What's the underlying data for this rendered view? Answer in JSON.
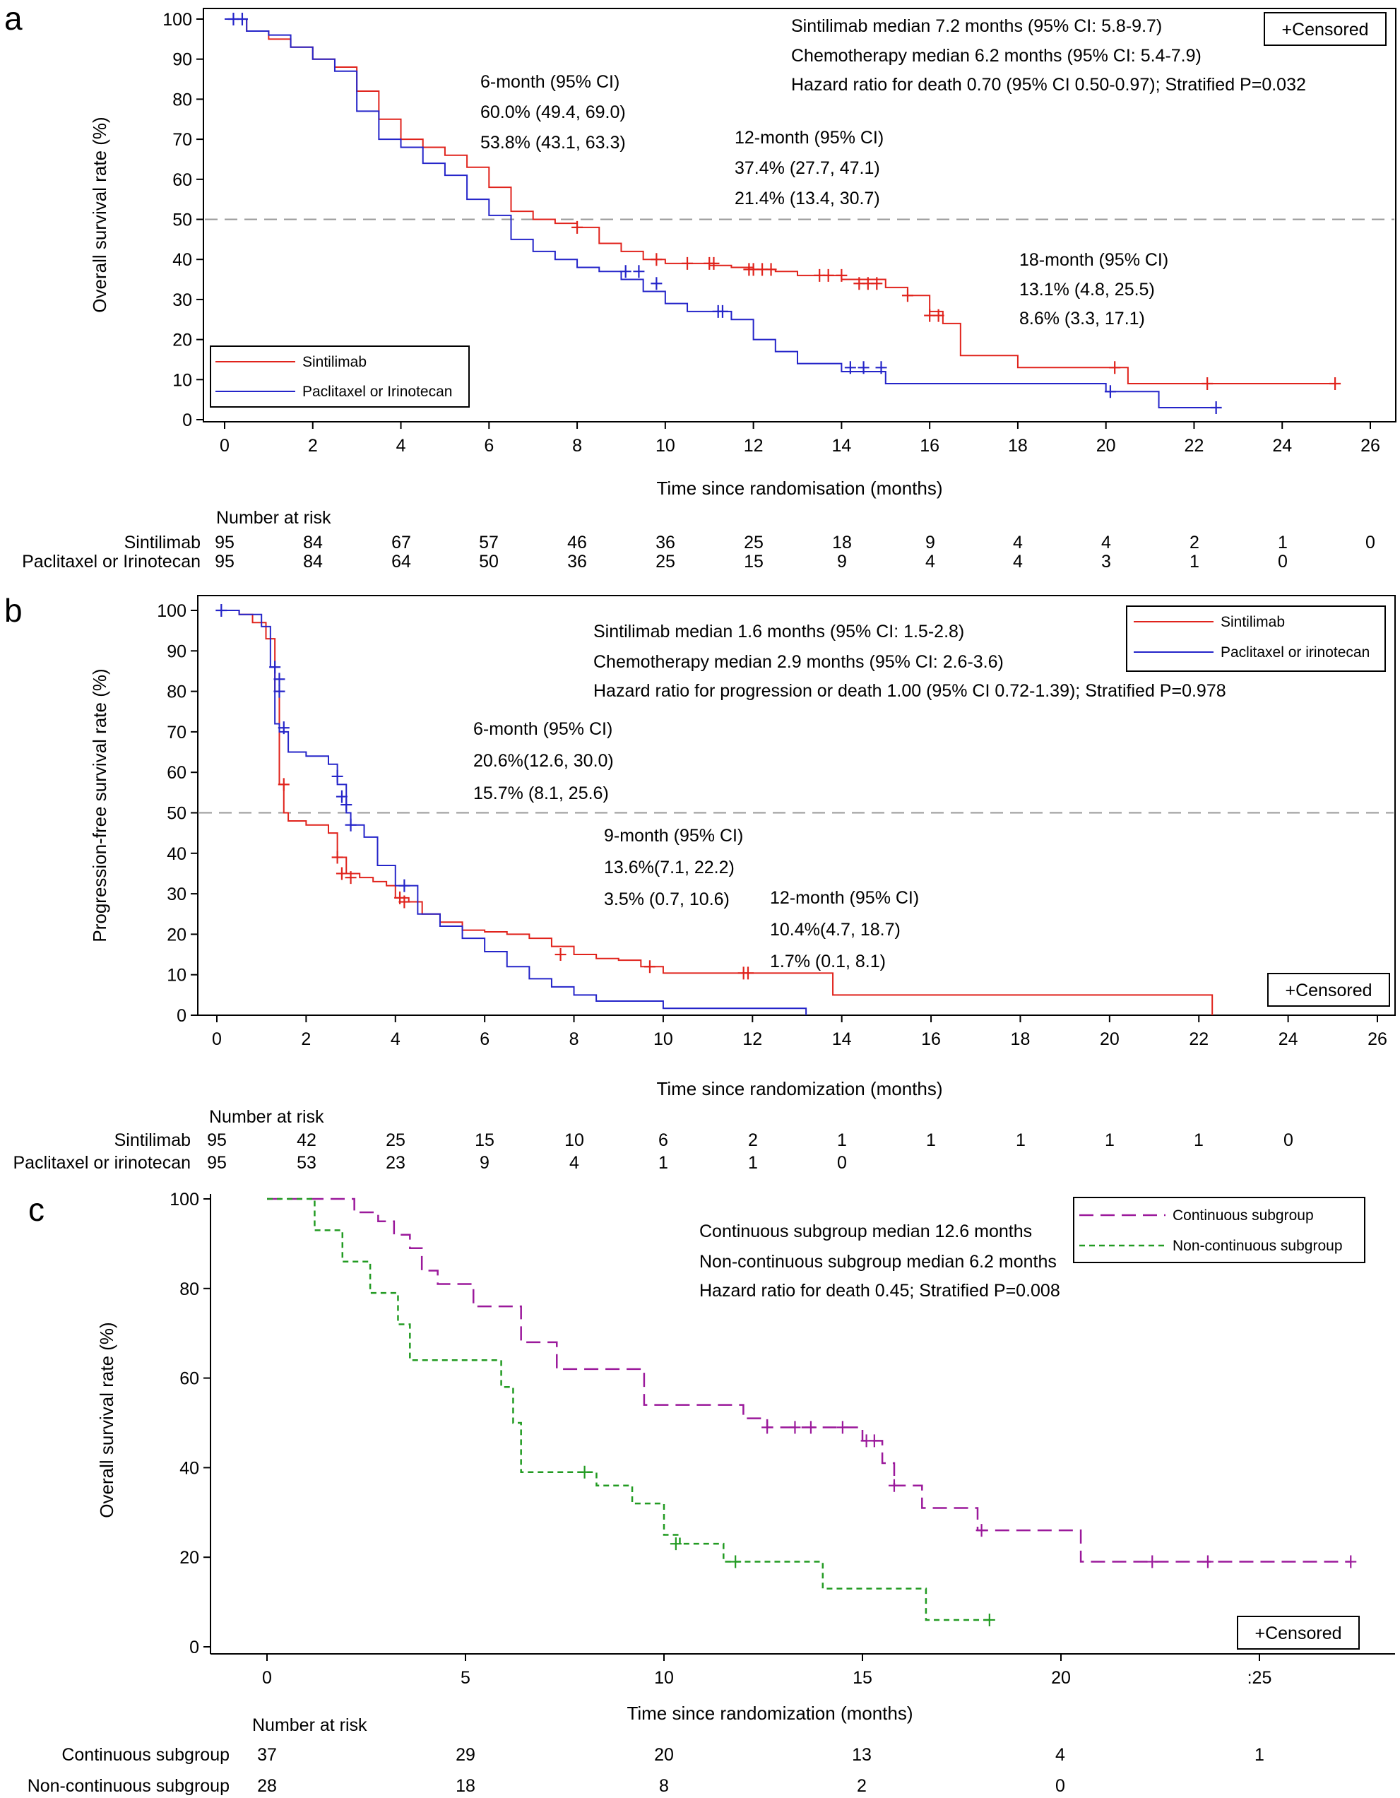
{
  "figure": {
    "panels": [
      "a",
      "b",
      "c"
    ],
    "censored_label": "+Censored",
    "number_at_risk_title": "Number at risk"
  },
  "chart_data": [
    {
      "type": "line",
      "panel": "a",
      "ylabel": "Overall survival rate (%)",
      "xlabel": "Time since randomisation (months)",
      "xlim": [
        0,
        26
      ],
      "ylim": [
        0,
        100
      ],
      "x_ticks": [
        "0",
        "2",
        "4",
        "6",
        "8",
        "10",
        "12",
        "14",
        "16",
        "18",
        "20",
        "22",
        "24",
        "26"
      ],
      "y_ticks": [
        "0",
        "10",
        "20",
        "30",
        "40",
        "50",
        "60",
        "70",
        "80",
        "90",
        "100"
      ],
      "reference_line_y": 50,
      "annotations": [
        "Sintilimab median 7.2 months (95% CI: 5.8-9.7)",
        "Chemotherapy median 6.2 months (95% CI: 5.4-7.9)",
        "Hazard ratio for death 0.70 (95% CI 0.50-0.97); Stratified P=0.032"
      ],
      "landmarks": [
        {
          "lines": [
            "6-month (95% CI)",
            "60.0% (49.4, 69.0)",
            "53.8% (43.1, 63.3)"
          ]
        },
        {
          "lines": [
            "12-month (95% CI)",
            "37.4% (27.7, 47.1)",
            "21.4% (13.4, 30.7)"
          ]
        },
        {
          "lines": [
            "18-month (95% CI)",
            "13.1% (4.8, 25.5)",
            "8.6% (3.3, 17.1)"
          ]
        }
      ],
      "series": [
        {
          "name": "Sintilimab",
          "color": "#e0231c",
          "x": [
            0,
            0.5,
            1,
            1.5,
            2,
            2.5,
            3,
            3.5,
            4,
            4.5,
            5,
            5.5,
            6,
            6.5,
            7,
            7.5,
            8,
            8.5,
            9,
            9.5,
            10,
            11,
            11.5,
            12,
            12.5,
            13,
            14,
            15,
            15.5,
            16,
            16.3,
            16.7,
            18,
            20,
            20.5,
            23,
            25.2
          ],
          "y": [
            100,
            97,
            95,
            93,
            90,
            88,
            82,
            75,
            70,
            68,
            66,
            63,
            58,
            52,
            50,
            49,
            48,
            44,
            42,
            40,
            39,
            38.5,
            38,
            37.5,
            37,
            36,
            35,
            33,
            31,
            27,
            24,
            16,
            13,
            13,
            9,
            9,
            9
          ],
          "censored_x": [
            8,
            9.8,
            10.5,
            11,
            11.1,
            11.9,
            12,
            12.2,
            12.4,
            13.5,
            13.7,
            14,
            14.4,
            14.6,
            14.8,
            15.5,
            16,
            16.2,
            20.2,
            22.3,
            25.2
          ],
          "censored_y": [
            48,
            40,
            39,
            39,
            39,
            37.5,
            37.5,
            37.5,
            37.5,
            36,
            36,
            36,
            34,
            34,
            34,
            31,
            26,
            26,
            13,
            9,
            9
          ]
        },
        {
          "name": "Paclitaxel or Irinotecan",
          "color": "#2525c9",
          "x": [
            0,
            0.5,
            1,
            1.5,
            2,
            2.5,
            3,
            3.5,
            4,
            4.5,
            5,
            5.5,
            6,
            6.5,
            7,
            7.5,
            8,
            8.5,
            9,
            9.5,
            10,
            10.5,
            11,
            11.5,
            12,
            12.5,
            13,
            14,
            14.5,
            15,
            19,
            20,
            21.2,
            22.5
          ],
          "y": [
            100,
            97,
            96,
            93,
            90,
            87,
            77,
            70,
            68,
            64,
            61,
            55,
            51,
            45,
            42,
            40,
            38,
            37,
            35,
            32,
            29,
            27,
            27,
            25,
            20,
            17,
            14,
            12,
            12,
            9,
            9,
            7,
            3,
            3
          ],
          "censored_x": [
            0.2,
            0.4,
            9.1,
            9.4,
            9.8,
            11.2,
            11.3,
            14.2,
            14.5,
            14.9,
            20.1,
            22.5
          ],
          "censored_y": [
            100,
            100,
            37,
            37,
            34,
            27,
            27,
            13,
            13,
            13,
            7,
            3
          ]
        }
      ],
      "number_at_risk": {
        "rows": [
          {
            "label": "Sintilimab",
            "values": [
              "95",
              "84",
              "67",
              "57",
              "46",
              "36",
              "25",
              "18",
              "9",
              "4",
              "4",
              "2",
              "1",
              "0"
            ]
          },
          {
            "label": "Paclitaxel or Irinotecan",
            "values": [
              "95",
              "84",
              "64",
              "50",
              "36",
              "25",
              "15",
              "9",
              "4",
              "4",
              "3",
              "1",
              "0"
            ]
          }
        ]
      }
    },
    {
      "type": "line",
      "panel": "b",
      "ylabel": "Progression-free survival rate (%)",
      "xlabel": "Time since randomization (months)",
      "xlim": [
        0,
        26
      ],
      "ylim": [
        0,
        100
      ],
      "x_ticks": [
        "0",
        "2",
        "4",
        "6",
        "8",
        "10",
        "12",
        "14",
        "16",
        "18",
        "20",
        "22",
        "24",
        "26"
      ],
      "y_ticks": [
        "0",
        "10",
        "20",
        "30",
        "40",
        "50",
        "60",
        "70",
        "80",
        "90",
        "100"
      ],
      "reference_line_y": 50,
      "annotations": [
        "Sintilimab median 1.6 months (95% CI: 1.5-2.8)",
        "Chemotherapy median 2.9 months (95% CI: 2.6-3.6)",
        "Hazard ratio for progression or death 1.00 (95% CI 0.72-1.39); Stratified P=0.978"
      ],
      "landmarks": [
        {
          "lines": [
            "6-month (95% CI)",
            "20.6%(12.6, 30.0)",
            "15.7% (8.1, 25.6)"
          ]
        },
        {
          "lines": [
            "9-month (95% CI)",
            "13.6%(7.1, 22.2)",
            "3.5% (0.7, 10.6)"
          ]
        },
        {
          "lines": [
            "12-month (95% CI)",
            "10.4%(4.7, 18.7)",
            "1.7% (0.1, 8.1)"
          ]
        }
      ],
      "series": [
        {
          "name": "Sintilimab",
          "color": "#e0231c",
          "x": [
            0,
            0.5,
            0.8,
            1.1,
            1.3,
            1.4,
            1.5,
            1.6,
            2,
            2.5,
            2.7,
            2.9,
            3.2,
            3.5,
            3.8,
            4,
            4.3,
            4.6,
            5,
            5.5,
            6,
            6.5,
            7,
            7.5,
            8,
            8.5,
            9,
            9.5,
            10,
            11,
            12,
            13.8,
            22.3
          ],
          "y": [
            100,
            99,
            97,
            93,
            80,
            57,
            50,
            48,
            47,
            45,
            39,
            35,
            34,
            33,
            32,
            29,
            28,
            25,
            23,
            21,
            20.6,
            20,
            19,
            17,
            15,
            14,
            13.6,
            12,
            10.4,
            10.4,
            10.4,
            5,
            0
          ],
          "censored_x": [
            1.5,
            2.7,
            2.8,
            3,
            4.1,
            4.2,
            7.7,
            9.7,
            11.8,
            11.9
          ],
          "censored_y": [
            57,
            39,
            35,
            34,
            29,
            28,
            15,
            12,
            10.4,
            10.4
          ]
        },
        {
          "name": "Paclitaxel or irinotecan",
          "color": "#2525c9",
          "x": [
            0,
            0.5,
            1,
            1.2,
            1.3,
            1.4,
            1.6,
            2,
            2.5,
            2.7,
            2.9,
            3,
            3.3,
            3.6,
            4,
            4.5,
            5,
            5.5,
            6,
            6.5,
            7,
            7.5,
            8,
            8.5,
            9,
            10,
            13.2
          ],
          "y": [
            100,
            99,
            96,
            86,
            72,
            70,
            65,
            64,
            62,
            57,
            50,
            47,
            44,
            37,
            32,
            25,
            22,
            19,
            15.7,
            12,
            9,
            7,
            5,
            3.5,
            3.5,
            1.7,
            0
          ],
          "censored_x": [
            0.1,
            1.3,
            1.4,
            1.4,
            1.5,
            2.7,
            2.8,
            2.9,
            3,
            4.2
          ],
          "censored_y": [
            100,
            86,
            83,
            80,
            71,
            59,
            54,
            52,
            47,
            32
          ]
        }
      ],
      "number_at_risk": {
        "rows": [
          {
            "label": "Sintilimab",
            "values": [
              "95",
              "42",
              "25",
              "15",
              "10",
              "6",
              "2",
              "1",
              "1",
              "1",
              "1",
              "1",
              "0"
            ]
          },
          {
            "label": "Paclitaxel or irinotecan",
            "values": [
              "95",
              "53",
              "23",
              "9",
              "4",
              "1",
              "1",
              "0"
            ]
          }
        ]
      }
    },
    {
      "type": "line",
      "panel": "c",
      "ylabel": "Overall survival rate (%)",
      "xlabel": "Time since randomization (months)",
      "xlim": [
        -1.5,
        27.5
      ],
      "ylim": [
        -3,
        102
      ],
      "x_tick_values": [
        0,
        5,
        10,
        15,
        20,
        25
      ],
      "x_ticks": [
        "0",
        "5",
        "10",
        "15",
        "20",
        ":25"
      ],
      "y_tick_values": [
        0,
        20,
        40,
        60,
        80,
        100
      ],
      "y_ticks": [
        "0",
        "20",
        "40",
        "60",
        "80",
        "100"
      ],
      "annotations": [
        "Continuous subgroup median 12.6 months",
        "Non-continuous subgroup median 6.2 months",
        "Hazard ratio for death 0.45; Stratified P=0.008"
      ],
      "series": [
        {
          "name": "Continuous subgroup",
          "color": "#9b199b",
          "dash": "long",
          "x": [
            0,
            1.7,
            2.2,
            2.8,
            3.2,
            3.6,
            3.9,
            4.3,
            5.2,
            5.8,
            6.4,
            7.3,
            8.3,
            9.5,
            10.3,
            12,
            12.6,
            13,
            13.7,
            15,
            15.5,
            15.8,
            16.5,
            17.9,
            20.5,
            27.3
          ],
          "y": [
            100,
            100,
            97,
            95,
            92,
            89,
            84,
            81,
            76,
            76,
            68,
            62,
            62,
            54,
            54,
            51,
            49,
            49,
            49,
            46,
            41,
            36,
            31,
            26,
            19,
            19
          ],
          "censored_x": [
            12.6,
            13.3,
            13.7,
            14.5,
            15.1,
            15.3,
            15.8,
            18,
            22.3,
            23.7,
            27.3
          ],
          "censored_y": [
            49,
            49,
            49,
            49,
            46,
            46,
            36,
            26,
            19,
            19,
            19
          ]
        },
        {
          "name": "Non-continuous subgroup",
          "color": "#229b22",
          "dash": "short",
          "x": [
            0,
            0.9,
            1.2,
            1.9,
            2.6,
            3.3,
            3.6,
            5.7,
            5.9,
            6.2,
            6.4,
            8,
            8.3,
            9.2,
            10,
            10.4,
            11.5,
            14,
            16.6,
            18.2
          ],
          "y": [
            100,
            100,
            93,
            86,
            79,
            72,
            64,
            64,
            58,
            50,
            39,
            39,
            36,
            32,
            25,
            23,
            19,
            13,
            6,
            6
          ],
          "censored_x": [
            8,
            10.3,
            11.8,
            18.2
          ],
          "censored_y": [
            39,
            23,
            19,
            6
          ]
        }
      ],
      "number_at_risk": {
        "rows": [
          {
            "label": "Continuous subgroup",
            "values": [
              "37",
              "29",
              "20",
              "13",
              "4",
              "1"
            ]
          },
          {
            "label": "Non-continuous subgroup",
            "values": [
              "28",
              "18",
              "8",
              "2",
              "0"
            ]
          }
        ]
      }
    }
  ]
}
